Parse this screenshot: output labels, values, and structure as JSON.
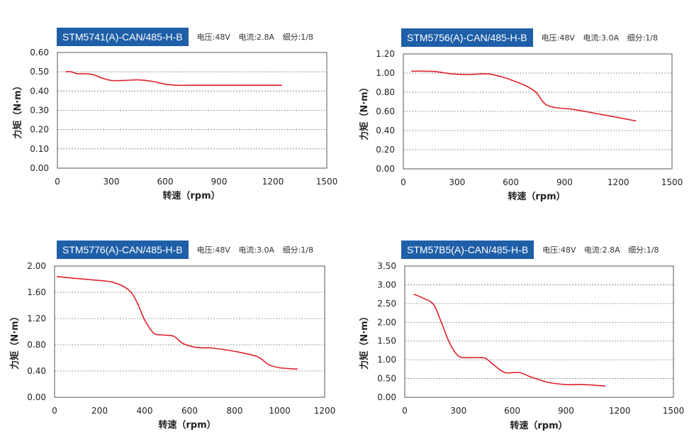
{
  "chart_data": [
    {
      "type": "line",
      "model": "STM5741(A)-CAN/485-H-B",
      "specs": {
        "voltage": "电压:48V",
        "current": "电流:2.8A",
        "microstep": "细分:1/8"
      },
      "xlabel": "转速（rpm）",
      "ylabel": "力矩（N·m）",
      "xlim": [
        0,
        1500
      ],
      "ylim": [
        0,
        0.6
      ],
      "xticks": [
        "0",
        "300",
        "600",
        "900",
        "1200",
        "1500"
      ],
      "yticks": [
        "0.00",
        "0.10",
        "0.20",
        "0.30",
        "0.40",
        "0.50",
        "0.60"
      ],
      "grid": true,
      "series": [
        {
          "color": "#e0202a",
          "x": [
            45,
            75,
            110,
            150,
            200,
            240,
            300,
            370,
            450,
            530,
            600,
            670,
            750,
            900,
            1050,
            1250
          ],
          "y": [
            0.5,
            0.5,
            0.49,
            0.49,
            0.485,
            0.47,
            0.455,
            0.455,
            0.458,
            0.45,
            0.436,
            0.43,
            0.43,
            0.43,
            0.43,
            0.43
          ]
        }
      ]
    },
    {
      "type": "line",
      "model": "STM5756(A)-CAN/485-H-B",
      "specs": {
        "voltage": "电压:48V",
        "current": "电流:3.0A",
        "microstep": "细分:1/8"
      },
      "xlabel": "转速（rpm）",
      "ylabel": "力矩（N·m）",
      "xlim": [
        0,
        1500
      ],
      "ylim": [
        0,
        1.2
      ],
      "xticks": [
        "0",
        "300",
        "600",
        "900",
        "1200",
        "1500"
      ],
      "yticks": [
        "0.00",
        "0.20",
        "0.40",
        "0.60",
        "0.80",
        "1.00",
        "1.20"
      ],
      "grid": true,
      "series": [
        {
          "color": "#e0202a",
          "x": [
            45,
            100,
            180,
            280,
            360,
            420,
            480,
            550,
            600,
            680,
            740,
            790,
            850,
            950,
            1100,
            1300
          ],
          "y": [
            1.02,
            1.02,
            1.015,
            0.99,
            0.985,
            0.99,
            0.99,
            0.96,
            0.93,
            0.87,
            0.8,
            0.68,
            0.64,
            0.62,
            0.57,
            0.5
          ]
        }
      ]
    },
    {
      "type": "line",
      "model": "STM5776(A)-CAN/485-H-B",
      "specs": {
        "voltage": "电压:48V",
        "current": "电流:3.0A",
        "microstep": "细分:1/8"
      },
      "xlabel": "转速（rpm）",
      "ylabel": "力矩（N·m）",
      "xlim": [
        0,
        1200
      ],
      "ylim": [
        0,
        2.0
      ],
      "xticks": [
        "0",
        "200",
        "400",
        "600",
        "800",
        "1000",
        "1200"
      ],
      "yticks": [
        "0.00",
        "0.40",
        "0.80",
        "1.20",
        "1.60",
        "2.00"
      ],
      "grid": true,
      "series": [
        {
          "color": "#e0202a",
          "x": [
            10,
            100,
            200,
            250,
            300,
            340,
            370,
            400,
            440,
            480,
            530,
            570,
            630,
            700,
            800,
            900,
            950,
            1000,
            1080
          ],
          "y": [
            1.84,
            1.81,
            1.78,
            1.76,
            1.7,
            1.6,
            1.42,
            1.18,
            0.98,
            0.95,
            0.93,
            0.82,
            0.76,
            0.75,
            0.7,
            0.62,
            0.5,
            0.45,
            0.43
          ]
        }
      ]
    },
    {
      "type": "line",
      "model": "STM57B5(A)-CAN/485-H-B",
      "specs": {
        "voltage": "电压:48V",
        "current": "电流:2.8A",
        "microstep": "细分:1/8"
      },
      "xlabel": "转速（rpm）",
      "ylabel": "力矩（N·m）",
      "xlim": [
        0,
        1500
      ],
      "ylim": [
        0,
        3.5
      ],
      "xticks": [
        "0",
        "300",
        "600",
        "900",
        "1200",
        "1500"
      ],
      "yticks": [
        "0.00",
        "0.50",
        "1.00",
        "1.50",
        "2.00",
        "2.50",
        "3.00",
        "3.50"
      ],
      "grid": true,
      "series": [
        {
          "color": "#e0202a",
          "x": [
            50,
            100,
            160,
            200,
            250,
            300,
            350,
            400,
            450,
            500,
            560,
            640,
            700,
            800,
            900,
            1000,
            1120
          ],
          "y": [
            2.75,
            2.65,
            2.48,
            2.05,
            1.45,
            1.1,
            1.06,
            1.06,
            1.04,
            0.85,
            0.66,
            0.66,
            0.55,
            0.4,
            0.34,
            0.34,
            0.3
          ]
        }
      ]
    }
  ]
}
